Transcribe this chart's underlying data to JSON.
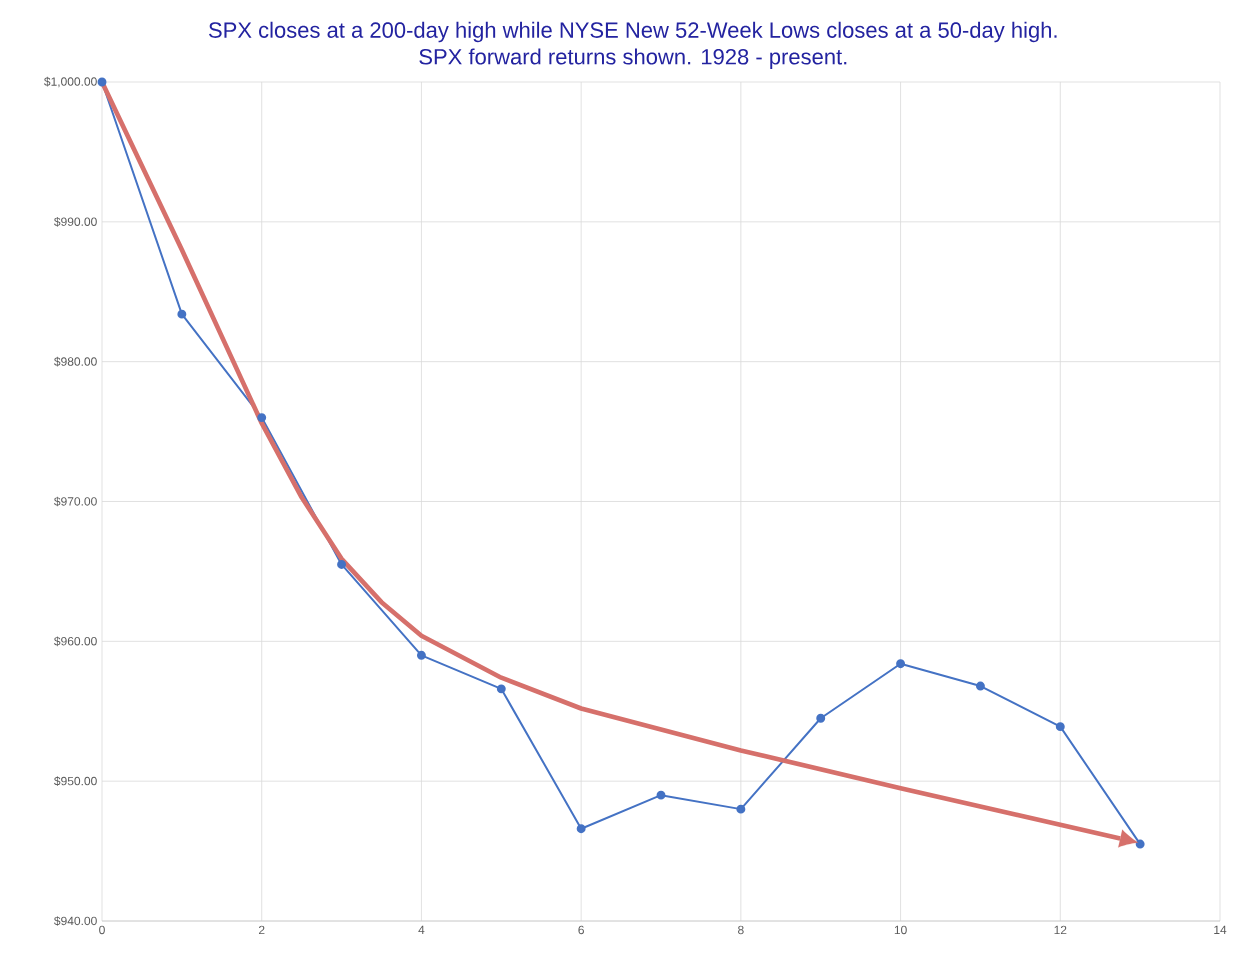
{
  "chart_data": {
    "type": "line",
    "title": "SPX closes at a 200-day high while NYSE New 52-Week Lows closes at a 50-day high.",
    "subtitle": "SPX forward returns shown. 1928 - present.",
    "x": [
      0,
      1,
      2,
      3,
      4,
      5,
      6,
      7,
      8,
      9,
      10,
      11,
      12,
      13
    ],
    "series": [
      {
        "color": "#4472c4",
        "values": [
          1000,
          983.4,
          976.0,
          965.5,
          959.0,
          956.6,
          946.6,
          949.0,
          948.0,
          954.5,
          958.4,
          956.8,
          953.9,
          945.5
        ]
      },
      {
        "type": "line",
        "color": "#d6706b",
        "marker": "none",
        "x": [
          0,
          1,
          2,
          2.5,
          3,
          3.5,
          4,
          5,
          6,
          8,
          10,
          12.75
        ],
        "values": [
          1000,
          988.0,
          975.6,
          970.3,
          965.9,
          962.8,
          960.4,
          957.4,
          955.2,
          952.2,
          949.5,
          945.9
        ]
      }
    ],
    "xlim": [
      0,
      14
    ],
    "xticks": [
      0,
      2,
      4,
      6,
      8,
      10,
      12,
      14
    ],
    "ylim": [
      940,
      1000
    ],
    "yticks": [
      {
        "value": 940,
        "label": "$940.00"
      },
      {
        "value": 950,
        "label": "$950.00"
      },
      {
        "value": 960,
        "label": "$960.00"
      },
      {
        "value": 970,
        "label": "$970.00"
      },
      {
        "value": 980,
        "label": "$980.00"
      },
      {
        "value": 990,
        "label": "$990.00"
      },
      {
        "value": 1000,
        "label": "$1,000.00"
      }
    ],
    "grid": true,
    "marker": "circle",
    "line_style": "solid"
  }
}
